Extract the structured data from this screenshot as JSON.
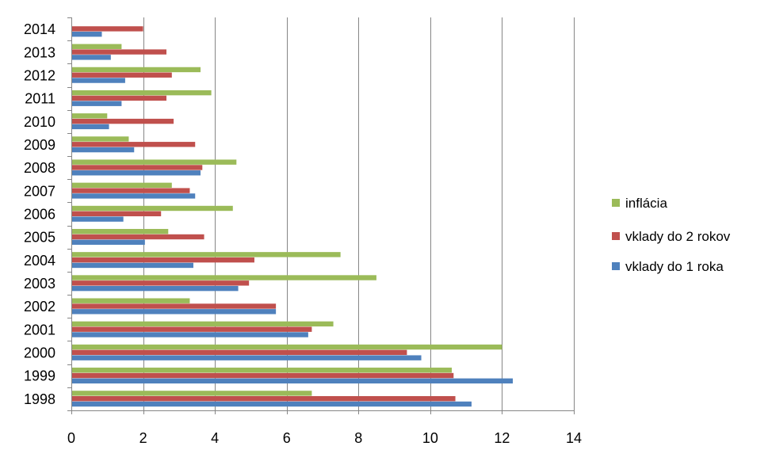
{
  "chart_data": {
    "type": "bar",
    "orientation": "horizontal",
    "title": "",
    "xlabel": "",
    "ylabel": "",
    "categories": [
      "1998",
      "1999",
      "2000",
      "2001",
      "2002",
      "2003",
      "2004",
      "2005",
      "2006",
      "2007",
      "2008",
      "2009",
      "2010",
      "2011",
      "2012",
      "2013",
      "2014"
    ],
    "series": [
      {
        "name": "inflácia",
        "color": "#9bbb59",
        "values": [
          6.7,
          10.6,
          12.0,
          7.3,
          3.3,
          8.5,
          7.5,
          2.7,
          4.5,
          2.8,
          4.6,
          1.6,
          1.0,
          3.9,
          3.6,
          1.4,
          0.0
        ]
      },
      {
        "name": "vklady do 2 rokov",
        "color": "#c0504d",
        "values": [
          10.7,
          10.65,
          9.35,
          6.7,
          5.7,
          4.95,
          5.1,
          3.7,
          2.5,
          3.3,
          3.65,
          3.45,
          2.85,
          2.65,
          2.8,
          2.65,
          2.0
        ]
      },
      {
        "name": "vklady do 1 roka",
        "color": "#4f81bd",
        "values": [
          11.15,
          12.3,
          9.75,
          6.6,
          5.7,
          4.65,
          3.4,
          2.05,
          1.45,
          3.45,
          3.6,
          1.75,
          1.05,
          1.4,
          1.5,
          1.1,
          0.85
        ]
      }
    ],
    "xlim": [
      0,
      14
    ],
    "xticks": [
      "0",
      "2",
      "4",
      "6",
      "8",
      "10",
      "12",
      "14"
    ],
    "grid": "vertical major gridlines",
    "legend": "right"
  }
}
